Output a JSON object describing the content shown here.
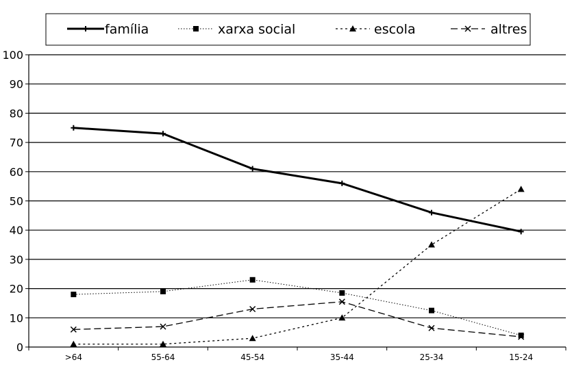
{
  "chart_data": {
    "type": "line",
    "title": "",
    "xlabel": "",
    "ylabel": "",
    "categories": [
      ">64",
      "55-64",
      "45-54",
      "35-44",
      "25-34",
      "15-24"
    ],
    "ylim": [
      0,
      100
    ],
    "yticks": [
      "0",
      "10",
      "20",
      "30",
      "40",
      "50",
      "60",
      "70",
      "80",
      "90",
      "100"
    ],
    "grid": true,
    "legend_position": "top",
    "series": [
      {
        "name": "família",
        "values": [
          75,
          73,
          61,
          56,
          46,
          39.5
        ],
        "color": "#000000",
        "line_style": "solid-thick",
        "marker": "plus"
      },
      {
        "name": "xarxa social",
        "values": [
          18,
          19,
          23,
          18.5,
          12.5,
          4
        ],
        "color": "#000000",
        "line_style": "dotted",
        "marker": "square"
      },
      {
        "name": "escola",
        "values": [
          1,
          1,
          3,
          10,
          35,
          54
        ],
        "color": "#000000",
        "line_style": "short-dash",
        "marker": "triangle"
      },
      {
        "name": "altres",
        "values": [
          6,
          7,
          13,
          15.5,
          6.5,
          3.5
        ],
        "color": "#000000",
        "line_style": "long-dash",
        "marker": "x"
      }
    ]
  }
}
